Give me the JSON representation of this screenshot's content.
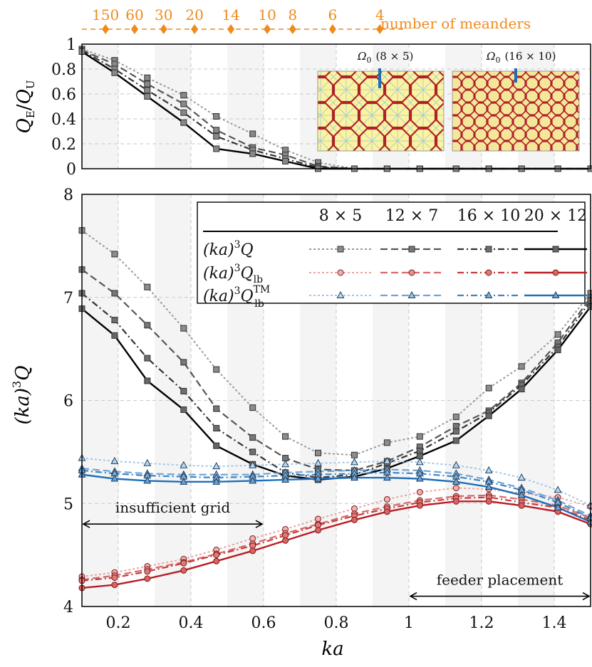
{
  "meanders": {
    "label": "number of meanders",
    "ticks": [
      {
        "ka": 0.165,
        "label": "150"
      },
      {
        "ka": 0.245,
        "label": "60"
      },
      {
        "ka": 0.325,
        "label": "30"
      },
      {
        "ka": 0.41,
        "label": "20"
      },
      {
        "ka": 0.51,
        "label": "14"
      },
      {
        "ka": 0.61,
        "label": "10"
      },
      {
        "ka": 0.68,
        "label": "8"
      },
      {
        "ka": 0.79,
        "label": "6"
      },
      {
        "ka": 0.92,
        "label": "4"
      }
    ],
    "color": "#f08a1c"
  },
  "insets": [
    {
      "label": "Ω",
      "sub": "0",
      "size": "(8 × 5)",
      "fill": "#fbf3a0",
      "line": "#b0202a"
    },
    {
      "label": "Ω",
      "sub": "0",
      "size": "(16 × 10)",
      "fill": "#f5e79a",
      "line": "#b0202a"
    }
  ],
  "chart_data": [
    {
      "type": "line",
      "ylabel_main": "Q",
      "ylabel_sub1": "E",
      "ylabel_sep": "/",
      "ylabel_main2": "Q",
      "ylabel_sub2": "U",
      "xlim": [
        0.1,
        1.5
      ],
      "ylim": [
        0,
        1
      ],
      "yticks": [
        "0",
        "0.2",
        "0.4",
        "0.6",
        "0.8",
        "1"
      ],
      "x": [
        0.1,
        0.19,
        0.28,
        0.38,
        0.47,
        0.57,
        0.66,
        0.75,
        0.85,
        0.94,
        1.03,
        1.13,
        1.22,
        1.31,
        1.41,
        1.5
      ],
      "series": [
        {
          "grid": "8 × 5",
          "color": "#9a9a9a",
          "dash": "3,3",
          "width": 2,
          "values": [
            0.96,
            0.87,
            0.73,
            0.59,
            0.42,
            0.28,
            0.15,
            0.05,
            0,
            0,
            0,
            0,
            0,
            0,
            0,
            0
          ]
        },
        {
          "grid": "12 × 7",
          "color": "#555555",
          "dash": "10,5",
          "width": 2.2,
          "values": [
            0.95,
            0.84,
            0.68,
            0.52,
            0.31,
            0.17,
            0.11,
            0.02,
            0,
            0,
            0,
            0,
            0,
            0,
            0,
            0
          ]
        },
        {
          "grid": "16 × 10",
          "color": "#333333",
          "dash": "9,4,2,4",
          "width": 2.2,
          "values": [
            0.95,
            0.8,
            0.63,
            0.45,
            0.26,
            0.15,
            0.08,
            0.01,
            0,
            0,
            0,
            0,
            0,
            0,
            0,
            0
          ]
        },
        {
          "grid": "20 × 12",
          "color": "#000000",
          "dash": "",
          "width": 2.4,
          "values": [
            0.94,
            0.77,
            0.58,
            0.37,
            0.16,
            0.12,
            0.06,
            0,
            0,
            0,
            0,
            0,
            0,
            0,
            0,
            0
          ]
        }
      ]
    },
    {
      "type": "line",
      "xlabel": "ka",
      "ylabel_pre": "(ka)",
      "ylabel_exp": "3",
      "ylabel_main": "Q",
      "xlim": [
        0.1,
        1.5
      ],
      "ylim": [
        4,
        8
      ],
      "xticks": [
        {
          "v": 0.2,
          "label": "0.2"
        },
        {
          "v": 0.4,
          "label": "0.4"
        },
        {
          "v": 0.6,
          "label": "0.6"
        },
        {
          "v": 0.8,
          "label": "0.8"
        },
        {
          "v": 1.0,
          "label": "1"
        },
        {
          "v": 1.2,
          "label": "1.2"
        },
        {
          "v": 1.4,
          "label": "1.4"
        }
      ],
      "yticks": [
        {
          "v": 4,
          "label": "4"
        },
        {
          "v": 5,
          "label": "5"
        },
        {
          "v": 6,
          "label": "6"
        },
        {
          "v": 7,
          "label": "7"
        },
        {
          "v": 8,
          "label": "8"
        }
      ],
      "x": [
        0.1,
        0.19,
        0.28,
        0.38,
        0.47,
        0.57,
        0.66,
        0.75,
        0.85,
        0.94,
        1.03,
        1.13,
        1.22,
        1.31,
        1.41,
        1.5
      ],
      "legend": {
        "columns": [
          "8 × 5",
          "12 × 7",
          "16 × 10",
          "20 × 12"
        ],
        "rows": [
          {
            "pre": "(ka)",
            "exp": "3",
            "main": "Q",
            "sub": "",
            "sup": "",
            "marker": "square"
          },
          {
            "pre": "(ka)",
            "exp": "3",
            "main": "Q",
            "sub": "lb",
            "sup": "",
            "marker": "circle"
          },
          {
            "pre": "(ka)",
            "exp": "3",
            "main": "Q",
            "sub": "lb",
            "sup": "TM",
            "marker": "triangle"
          }
        ]
      },
      "groups": [
        {
          "quantity": "Q",
          "marker": "square",
          "series": [
            {
              "grid": "8 × 5",
              "color": "#9a9a9a",
              "fill": "#8c8c8c",
              "dash": "3,3",
              "width": 2,
              "values": [
                7.65,
                7.42,
                7.1,
                6.7,
                6.3,
                5.93,
                5.65,
                5.49,
                5.47,
                5.59,
                5.65,
                5.84,
                6.12,
                6.33,
                6.64,
                7.04
              ]
            },
            {
              "grid": "12 × 7",
              "color": "#555555",
              "fill": "#777777",
              "dash": "10,5",
              "width": 2.2,
              "values": [
                7.27,
                7.04,
                6.73,
                6.37,
                5.92,
                5.64,
                5.44,
                5.33,
                5.32,
                5.41,
                5.55,
                5.75,
                5.9,
                6.17,
                6.56,
                7.0
              ]
            },
            {
              "grid": "16 × 10",
              "color": "#333333",
              "fill": "#6e6e6e",
              "dash": "9,4,2,4",
              "width": 2.2,
              "values": [
                7.04,
                6.78,
                6.41,
                6.09,
                5.73,
                5.5,
                5.3,
                5.25,
                5.28,
                5.39,
                5.51,
                5.7,
                5.88,
                6.15,
                6.52,
                6.97
              ]
            },
            {
              "grid": "20 × 12",
              "color": "#000000",
              "fill": "#666666",
              "dash": "",
              "width": 2.4,
              "values": [
                6.89,
                6.63,
                6.19,
                5.91,
                5.56,
                5.38,
                5.27,
                5.23,
                5.26,
                5.34,
                5.46,
                5.61,
                5.85,
                6.11,
                6.49,
                6.91
              ]
            }
          ]
        },
        {
          "quantity": "Qlb",
          "marker": "circle",
          "series": [
            {
              "grid": "8 × 5",
              "color": "#eba3a3",
              "fill": "#f0b0b0",
              "dash": "3,3",
              "width": 2,
              "values": [
                4.29,
                4.33,
                4.39,
                4.46,
                4.55,
                4.66,
                4.75,
                4.85,
                4.95,
                5.04,
                5.11,
                5.15,
                5.14,
                5.1,
                5.06,
                4.97
              ]
            },
            {
              "grid": "12 × 7",
              "color": "#d86868",
              "fill": "#e89090",
              "dash": "10,5",
              "width": 2.2,
              "values": [
                4.26,
                4.3,
                4.36,
                4.43,
                4.51,
                4.61,
                4.71,
                4.8,
                4.9,
                4.97,
                5.03,
                5.07,
                5.08,
                5.04,
                4.98,
                4.86
              ]
            },
            {
              "grid": "16 × 10",
              "color": "#c83a3a",
              "fill": "#e07a7a",
              "dash": "9,4,2,4",
              "width": 2.2,
              "values": [
                4.25,
                4.28,
                4.34,
                4.42,
                4.5,
                4.59,
                4.69,
                4.79,
                4.88,
                4.95,
                5.01,
                5.05,
                5.06,
                5.01,
                4.96,
                4.84
              ]
            },
            {
              "grid": "20 × 12",
              "color": "#b81d24",
              "fill": "#e06060",
              "dash": "",
              "width": 2.4,
              "values": [
                4.18,
                4.21,
                4.27,
                4.35,
                4.44,
                4.54,
                4.64,
                4.74,
                4.84,
                4.92,
                4.98,
                5.02,
                5.02,
                4.98,
                4.92,
                4.8
              ]
            }
          ]
        },
        {
          "quantity": "QlbTM",
          "marker": "triangle",
          "series": [
            {
              "grid": "8 × 5",
              "color": "#a3c8e6",
              "fill": "#bcd8ef",
              "dash": "3,3",
              "width": 2,
              "values": [
                5.44,
                5.41,
                5.39,
                5.37,
                5.36,
                5.37,
                5.38,
                5.39,
                5.4,
                5.41,
                5.4,
                5.37,
                5.32,
                5.25,
                5.13,
                4.98
              ]
            },
            {
              "grid": "12 × 7",
              "color": "#6fa6d6",
              "fill": "#9fc4e6",
              "dash": "10,5",
              "width": 2.2,
              "values": [
                5.34,
                5.31,
                5.29,
                5.28,
                5.28,
                5.28,
                5.3,
                5.31,
                5.32,
                5.33,
                5.32,
                5.29,
                5.23,
                5.15,
                5.03,
                4.88
              ]
            },
            {
              "grid": "16 × 10",
              "color": "#3d86c6",
              "fill": "#7fb0dc",
              "dash": "9,4,2,4",
              "width": 2.2,
              "values": [
                5.32,
                5.29,
                5.27,
                5.26,
                5.25,
                5.26,
                5.27,
                5.28,
                5.29,
                5.3,
                5.29,
                5.26,
                5.21,
                5.13,
                5.01,
                4.86
              ]
            },
            {
              "grid": "20 × 12",
              "color": "#1f6fb8",
              "fill": "#6aa3d6",
              "dash": "",
              "width": 2.4,
              "values": [
                5.28,
                5.24,
                5.22,
                5.21,
                5.21,
                5.22,
                5.23,
                5.24,
                5.25,
                5.25,
                5.24,
                5.21,
                5.16,
                5.08,
                4.96,
                4.82
              ]
            }
          ]
        }
      ],
      "annotations": [
        {
          "text": "insufficient grid",
          "from": 0.1,
          "to": 0.6,
          "y": 4.8
        },
        {
          "text": "feeder placement",
          "from": 1.0,
          "to": 1.5,
          "y": 4.1
        }
      ]
    }
  ]
}
